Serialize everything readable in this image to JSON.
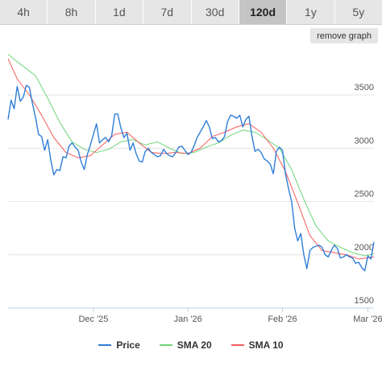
{
  "range_tabs": [
    {
      "label": "4h"
    },
    {
      "label": "8h"
    },
    {
      "label": "1d"
    },
    {
      "label": "7d"
    },
    {
      "label": "30d"
    },
    {
      "label": "120d"
    },
    {
      "label": "1y"
    },
    {
      "label": "5y"
    }
  ],
  "active_tab": "120d",
  "remove_graph_label": "remove graph",
  "colors": {
    "price": "#2f7ed8",
    "sma20": "#6fd67a",
    "sma10": "#f45b5b",
    "grid": "#e6e6e6"
  },
  "chart_data": {
    "type": "line",
    "title": "",
    "xlabel": "",
    "ylabel": "",
    "x_range": [
      "2025-11-03",
      "2026-03-03"
    ],
    "ylim": [
      1500,
      3900
    ],
    "y_ticks": [
      1500,
      2000,
      2500,
      3000,
      3500
    ],
    "x_ticks": [
      {
        "date": "2025-12-01",
        "label": "Dec '25"
      },
      {
        "date": "2026-01-01",
        "label": "Jan '26"
      },
      {
        "date": "2026-02-01",
        "label": "Feb '26"
      },
      {
        "date": "2026-03-01",
        "label": "Mar '26"
      }
    ],
    "grid": true,
    "legend_position": "bottom",
    "series": [
      {
        "name": "Price",
        "color_key": "price",
        "points": [
          [
            "2025-11-03",
            3270
          ],
          [
            "2025-11-04",
            3450
          ],
          [
            "2025-11-05",
            3370
          ],
          [
            "2025-11-06",
            3580
          ],
          [
            "2025-11-07",
            3440
          ],
          [
            "2025-11-08",
            3480
          ],
          [
            "2025-11-09",
            3590
          ],
          [
            "2025-11-10",
            3570
          ],
          [
            "2025-11-11",
            3420
          ],
          [
            "2025-11-12",
            3290
          ],
          [
            "2025-11-13",
            3130
          ],
          [
            "2025-11-14",
            3110
          ],
          [
            "2025-11-15",
            2980
          ],
          [
            "2025-11-16",
            3080
          ],
          [
            "2025-11-17",
            2890
          ],
          [
            "2025-11-18",
            2750
          ],
          [
            "2025-11-19",
            2800
          ],
          [
            "2025-11-20",
            2790
          ],
          [
            "2025-11-21",
            2920
          ],
          [
            "2025-11-22",
            2910
          ],
          [
            "2025-11-23",
            3020
          ],
          [
            "2025-11-24",
            3050
          ],
          [
            "2025-11-25",
            3010
          ],
          [
            "2025-11-26",
            2980
          ],
          [
            "2025-11-27",
            2870
          ],
          [
            "2025-11-28",
            2800
          ],
          [
            "2025-11-29",
            2940
          ],
          [
            "2025-11-30",
            3030
          ],
          [
            "2025-12-01",
            3130
          ],
          [
            "2025-12-02",
            3230
          ],
          [
            "2025-12-03",
            3050
          ],
          [
            "2025-12-04",
            3080
          ],
          [
            "2025-12-05",
            3100
          ],
          [
            "2025-12-06",
            3060
          ],
          [
            "2025-12-07",
            3120
          ],
          [
            "2025-12-08",
            3320
          ],
          [
            "2025-12-09",
            3320
          ],
          [
            "2025-12-10",
            3190
          ],
          [
            "2025-12-11",
            3100
          ],
          [
            "2025-12-12",
            3140
          ],
          [
            "2025-12-13",
            2980
          ],
          [
            "2025-12-14",
            3050
          ],
          [
            "2025-12-15",
            2950
          ],
          [
            "2025-12-16",
            2880
          ],
          [
            "2025-12-17",
            2870
          ],
          [
            "2025-12-18",
            2970
          ],
          [
            "2025-12-19",
            3000
          ],
          [
            "2025-12-20",
            2960
          ],
          [
            "2025-12-21",
            2940
          ],
          [
            "2025-12-22",
            2920
          ],
          [
            "2025-12-23",
            2930
          ],
          [
            "2025-12-24",
            2990
          ],
          [
            "2025-12-25",
            2950
          ],
          [
            "2025-12-26",
            2930
          ],
          [
            "2025-12-27",
            2920
          ],
          [
            "2025-12-28",
            2960
          ],
          [
            "2025-12-29",
            3010
          ],
          [
            "2025-12-30",
            3020
          ],
          [
            "2025-12-31",
            2980
          ],
          [
            "2026-01-01",
            2940
          ],
          [
            "2026-01-02",
            2960
          ],
          [
            "2026-01-03",
            3020
          ],
          [
            "2026-01-04",
            3100
          ],
          [
            "2026-01-05",
            3150
          ],
          [
            "2026-01-06",
            3200
          ],
          [
            "2026-01-07",
            3260
          ],
          [
            "2026-01-08",
            3200
          ],
          [
            "2026-01-09",
            3090
          ],
          [
            "2026-01-10",
            3100
          ],
          [
            "2026-01-11",
            3060
          ],
          [
            "2026-01-12",
            3070
          ],
          [
            "2026-01-13",
            3110
          ],
          [
            "2026-01-14",
            3250
          ],
          [
            "2026-01-15",
            3310
          ],
          [
            "2026-01-16",
            3300
          ],
          [
            "2026-01-17",
            3280
          ],
          [
            "2026-01-18",
            3310
          ],
          [
            "2026-01-19",
            3200
          ],
          [
            "2026-01-20",
            3270
          ],
          [
            "2026-01-21",
            3300
          ],
          [
            "2026-01-22",
            3110
          ],
          [
            "2026-01-23",
            2970
          ],
          [
            "2026-01-24",
            2990
          ],
          [
            "2026-01-25",
            2960
          ],
          [
            "2026-01-26",
            2900
          ],
          [
            "2026-01-27",
            2880
          ],
          [
            "2026-01-28",
            2850
          ],
          [
            "2026-01-29",
            2760
          ],
          [
            "2026-01-30",
            2970
          ],
          [
            "2026-01-31",
            3010
          ],
          [
            "2026-02-01",
            2980
          ],
          [
            "2026-02-02",
            2760
          ],
          [
            "2026-02-03",
            2620
          ],
          [
            "2026-02-04",
            2500
          ],
          [
            "2026-02-05",
            2250
          ],
          [
            "2026-02-06",
            2130
          ],
          [
            "2026-02-07",
            2200
          ],
          [
            "2026-02-08",
            2000
          ],
          [
            "2026-02-09",
            1870
          ],
          [
            "2026-02-10",
            2040
          ],
          [
            "2026-02-11",
            2070
          ],
          [
            "2026-02-12",
            2080
          ],
          [
            "2026-02-13",
            2090
          ],
          [
            "2026-02-14",
            2070
          ],
          [
            "2026-02-15",
            2000
          ],
          [
            "2026-02-16",
            1980
          ],
          [
            "2026-02-17",
            2040
          ],
          [
            "2026-02-18",
            2090
          ],
          [
            "2026-02-19",
            2060
          ],
          [
            "2026-02-20",
            1970
          ],
          [
            "2026-02-21",
            1980
          ],
          [
            "2026-02-22",
            2000
          ],
          [
            "2026-02-23",
            1980
          ],
          [
            "2026-02-24",
            1970
          ],
          [
            "2026-02-25",
            1920
          ],
          [
            "2026-02-26",
            1930
          ],
          [
            "2026-02-27",
            1880
          ],
          [
            "2026-02-28",
            1850
          ],
          [
            "2026-03-01",
            1990
          ],
          [
            "2026-03-02",
            1960
          ],
          [
            "2026-03-03",
            2120
          ]
        ]
      },
      {
        "name": "SMA 20",
        "color_key": "sma20",
        "points": [
          [
            "2025-11-03",
            3880
          ],
          [
            "2025-11-07",
            3790
          ],
          [
            "2025-11-12",
            3680
          ],
          [
            "2025-11-16",
            3470
          ],
          [
            "2025-11-20",
            3240
          ],
          [
            "2025-11-24",
            3060
          ],
          [
            "2025-11-28",
            2990
          ],
          [
            "2025-12-02",
            2960
          ],
          [
            "2025-12-06",
            2990
          ],
          [
            "2025-12-10",
            3060
          ],
          [
            "2025-12-14",
            3080
          ],
          [
            "2025-12-18",
            3030
          ],
          [
            "2025-12-22",
            3060
          ],
          [
            "2025-12-26",
            3000
          ],
          [
            "2025-12-30",
            2950
          ],
          [
            "2026-01-03",
            2960
          ],
          [
            "2026-01-07",
            3010
          ],
          [
            "2026-01-11",
            3050
          ],
          [
            "2026-01-15",
            3120
          ],
          [
            "2026-01-19",
            3170
          ],
          [
            "2026-01-23",
            3150
          ],
          [
            "2026-01-27",
            3080
          ],
          [
            "2026-01-31",
            3000
          ],
          [
            "2026-02-04",
            2800
          ],
          [
            "2026-02-08",
            2520
          ],
          [
            "2026-02-12",
            2270
          ],
          [
            "2026-02-16",
            2130
          ],
          [
            "2026-02-20",
            2070
          ],
          [
            "2026-02-24",
            2020
          ],
          [
            "2026-02-28",
            1990
          ],
          [
            "2026-03-03",
            2010
          ]
        ]
      },
      {
        "name": "SMA 10",
        "color_key": "sma10",
        "points": [
          [
            "2025-11-03",
            3840
          ],
          [
            "2025-11-06",
            3650
          ],
          [
            "2025-11-10",
            3500
          ],
          [
            "2025-11-14",
            3310
          ],
          [
            "2025-11-18",
            3100
          ],
          [
            "2025-11-22",
            2960
          ],
          [
            "2025-11-26",
            2910
          ],
          [
            "2025-11-30",
            2930
          ],
          [
            "2025-12-04",
            3030
          ],
          [
            "2025-12-08",
            3130
          ],
          [
            "2025-12-12",
            3150
          ],
          [
            "2025-12-16",
            3050
          ],
          [
            "2025-12-20",
            2960
          ],
          [
            "2025-12-24",
            2950
          ],
          [
            "2025-12-28",
            2960
          ],
          [
            "2026-01-01",
            2950
          ],
          [
            "2026-01-05",
            3000
          ],
          [
            "2026-01-09",
            3110
          ],
          [
            "2026-01-13",
            3150
          ],
          [
            "2026-01-17",
            3200
          ],
          [
            "2026-01-21",
            3230
          ],
          [
            "2026-01-25",
            3150
          ],
          [
            "2026-01-29",
            3000
          ],
          [
            "2026-02-02",
            2780
          ],
          [
            "2026-02-06",
            2490
          ],
          [
            "2026-02-10",
            2180
          ],
          [
            "2026-02-14",
            2040
          ],
          [
            "2026-02-18",
            2020
          ],
          [
            "2026-02-22",
            2000
          ],
          [
            "2026-02-26",
            1960
          ],
          [
            "2026-03-03",
            1980
          ]
        ]
      }
    ]
  }
}
